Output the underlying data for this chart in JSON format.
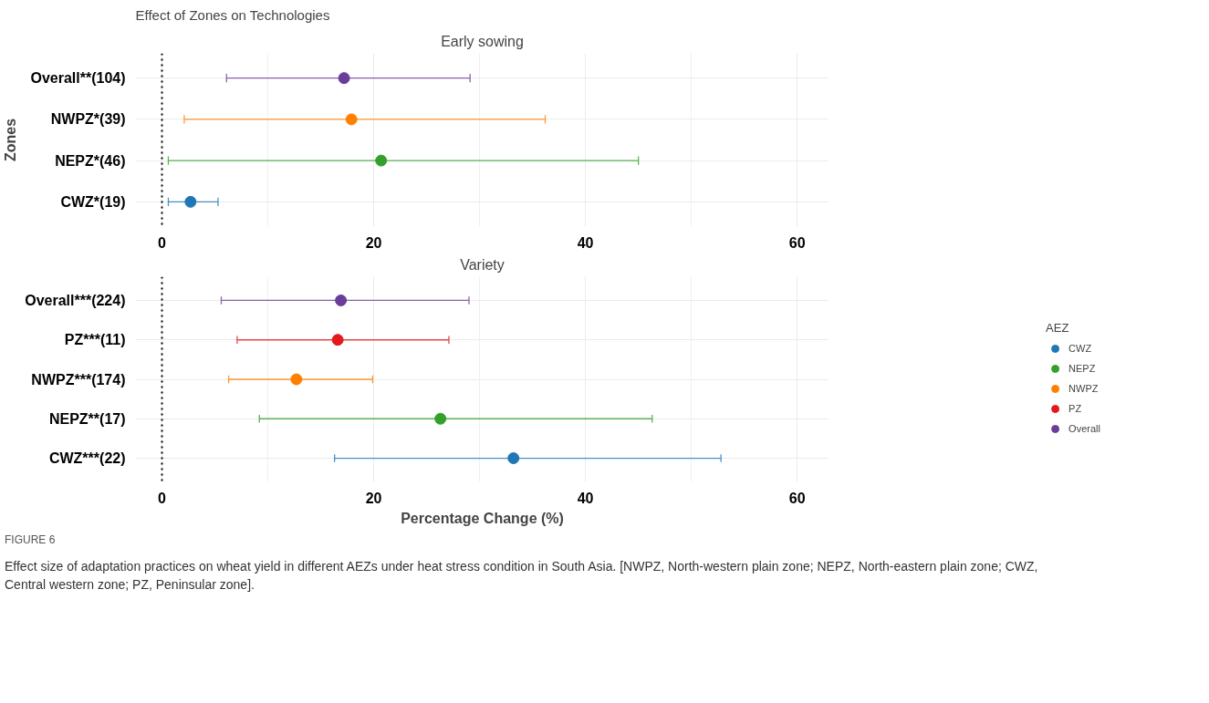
{
  "chart_data": [
    {
      "type": "scatter",
      "title": "Effect of Zones on Technologies",
      "subtitle": "Early sowing",
      "ylabel": "Zones",
      "orientation": "horizontal",
      "categories": [
        "Overall**(104)",
        "NWPZ*(39)",
        "NEPZ*(46)",
        "CWZ*(19)"
      ],
      "xlim": [
        -2.5,
        63
      ],
      "xticks": [
        0,
        20,
        40,
        60
      ],
      "grid": true,
      "marker": "circle",
      "legend": false,
      "ref_lines": [
        {
          "axis": "x",
          "value": 0,
          "line_style": "dotted",
          "color": "#000000"
        }
      ],
      "series": [
        {
          "color": "#1f78b4",
          "values": [
            null,
            null,
            null,
            2.7
          ],
          "errors": [
            null,
            null,
            null,
            [
              0.6,
              5.3
            ]
          ]
        },
        {
          "color": "#33a02c",
          "values": [
            null,
            null,
            20.7,
            null
          ],
          "errors": [
            null,
            null,
            [
              0.6,
              45.0
            ],
            null
          ]
        },
        {
          "color": "#ff7f00",
          "values": [
            null,
            17.9,
            null,
            null
          ],
          "errors": [
            null,
            [
              2.1,
              36.2
            ],
            null,
            null
          ]
        },
        {
          "color": "#6a3d9a",
          "values": [
            17.2,
            null,
            null,
            null
          ],
          "errors": [
            [
              6.1,
              29.1
            ],
            null,
            null,
            null
          ]
        }
      ]
    },
    {
      "type": "scatter",
      "subtitle": "Variety",
      "xlabel": "Percentage Change (%)",
      "orientation": "horizontal",
      "categories": [
        "Overall***(224)",
        "PZ***(11)",
        "NWPZ***(174)",
        "NEPZ**(17)",
        "CWZ***(22)"
      ],
      "xlim": [
        -2.5,
        63
      ],
      "xticks": [
        0,
        20,
        40,
        60
      ],
      "grid": true,
      "marker": "circle",
      "legend": "right",
      "legend_title": "AEZ",
      "ref_lines": [
        {
          "axis": "x",
          "value": 0,
          "line_style": "dotted",
          "color": "#000000"
        }
      ],
      "annotations": [
        "FIGURE 6",
        "Effect size of adaptation practices on wheat yield in different AEZs under heat stress condition in South Asia. [NWPZ, North-western plain zone; NEPZ, North-eastern plain zone; CWZ, Central western zone; PZ, Peninsular zone]."
      ],
      "series": [
        {
          "name": "CWZ",
          "color": "#1f78b4",
          "values": [
            null,
            null,
            null,
            null,
            33.2
          ],
          "errors": [
            null,
            null,
            null,
            null,
            [
              16.3,
              52.8
            ]
          ]
        },
        {
          "name": "NEPZ",
          "color": "#33a02c",
          "values": [
            null,
            null,
            null,
            26.3,
            null
          ],
          "errors": [
            null,
            null,
            null,
            [
              9.2,
              46.3
            ],
            null
          ]
        },
        {
          "name": "NWPZ",
          "color": "#ff7f00",
          "values": [
            null,
            null,
            12.7,
            null,
            null
          ],
          "errors": [
            null,
            null,
            [
              6.3,
              19.9
            ],
            null,
            null
          ]
        },
        {
          "name": "PZ",
          "color": "#e31a1c",
          "values": [
            null,
            16.6,
            null,
            null,
            null
          ],
          "errors": [
            null,
            [
              7.1,
              27.1
            ],
            null,
            null,
            null
          ]
        },
        {
          "name": "Overall",
          "color": "#6a3d9a",
          "values": [
            16.9,
            null,
            null,
            null,
            null
          ],
          "errors": [
            [
              5.6,
              29.0
            ],
            null,
            null,
            null,
            null
          ]
        }
      ]
    }
  ]
}
